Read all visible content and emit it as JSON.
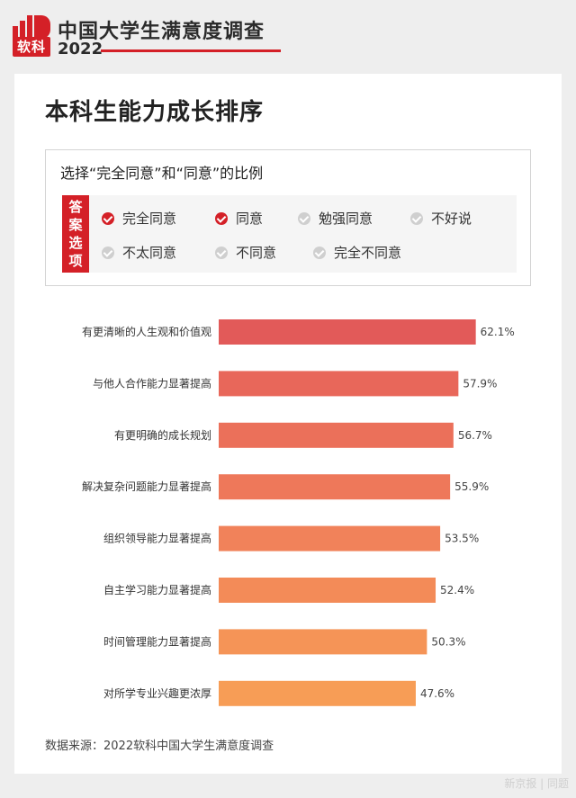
{
  "header": {
    "logo_text": "软科",
    "title": "中国大学生满意度调查",
    "year": "2022"
  },
  "card": {
    "title": "本科生能力成长排序"
  },
  "filter": {
    "title": "选择“完全同意”和“同意”的比例",
    "answer_label": [
      "答",
      "案",
      "选",
      "项"
    ],
    "options": [
      {
        "label": "完全同意",
        "checked": true
      },
      {
        "label": "同意",
        "checked": true
      },
      {
        "label": "勉强同意",
        "checked": false
      },
      {
        "label": "不好说",
        "checked": false
      },
      {
        "label": "不太同意",
        "checked": false
      },
      {
        "label": "不同意",
        "checked": false
      },
      {
        "label": "完全不同意",
        "checked": false
      }
    ]
  },
  "chart_data": {
    "type": "bar",
    "orientation": "horizontal",
    "categories": [
      "有更清晰的人生观和价值观",
      "与他人合作能力显著提高",
      "有更明确的成长规划",
      "解决复杂问题能力显著提高",
      "组织领导能力显著提高",
      "自主学习能力显著提高",
      "时间管理能力显著提高",
      "对所学专业兴趣更浓厚"
    ],
    "values": [
      62.1,
      57.9,
      56.7,
      55.9,
      53.5,
      52.4,
      50.3,
      47.6
    ],
    "value_labels": [
      "62.1%",
      "57.9%",
      "56.7%",
      "55.9%",
      "53.5%",
      "52.4%",
      "50.3%",
      "47.6%"
    ],
    "unit": "%",
    "xlim": [
      0,
      100
    ],
    "colors": [
      "#e25a59",
      "#e8675a",
      "#eb705a",
      "#ee785a",
      "#f1825a",
      "#f38b58",
      "#f59457",
      "#f79d56"
    ]
  },
  "source": "数据来源：2022软科中国大学生满意度调查",
  "watermark": "新京报 | 同题"
}
